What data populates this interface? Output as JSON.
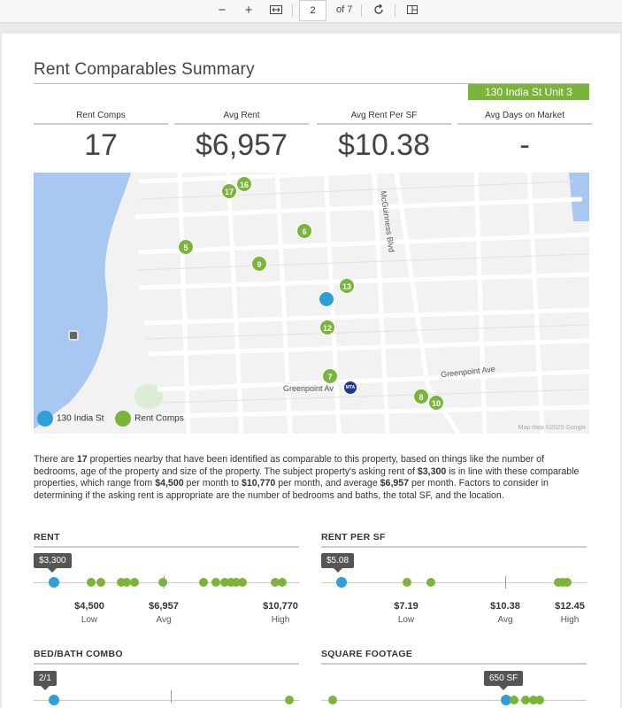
{
  "toolbar": {
    "zoom_out": "−",
    "zoom_in": "+",
    "page_number": "2",
    "page_of": "of 7"
  },
  "report": {
    "title": "Rent Comparables Summary",
    "address": "130 India St Unit 3"
  },
  "stats": [
    {
      "label": "Rent Comps",
      "value": "17"
    },
    {
      "label": "Avg Rent",
      "value": "$6,957"
    },
    {
      "label": "Avg Rent Per SF",
      "value": "$10.38"
    },
    {
      "label": "Avg Days on Market",
      "value": "-"
    }
  ],
  "map": {
    "streets": [
      "McGuinness Blvd",
      "Greenpoint Ave",
      "Greenpoint Av"
    ],
    "transit_label": "MTA",
    "pins": [
      "17",
      "16",
      "6",
      "5",
      "9",
      "13",
      "12",
      "7",
      "8",
      "10"
    ],
    "legend": {
      "subject": "130 India St",
      "comps": "Rent Comps"
    },
    "attribution": "Map data ©2025 Google",
    "colors": {
      "comp": "#7ab53a",
      "subject": "#2e9fd9",
      "water": "#a9c8f1"
    }
  },
  "summary": {
    "p1": "There are ",
    "count": "17",
    "p2": " properties nearby that have been identified as comparable to this property, based on things like the number of bedrooms, age of the property and size of the property. The subject property's asking rent of ",
    "subject_rent": "$3,300",
    "p3": " is in line with these comparable properties, which range from ",
    "low": "$4,500",
    "p4": " per month to ",
    "high": "$10,770",
    "p5": " per month, and average  ",
    "avg": "$6,957",
    "p6": " per month. Factors to consider in determining if the asking rent is appropriate are the number of bedrooms and baths, the total SF, and the location."
  },
  "rent": {
    "title": "RENT",
    "subject": "$3,300",
    "low": "$4,500",
    "low_cap": "Low",
    "avg": "$6,957",
    "avg_cap": "Avg",
    "high": "$10,770",
    "high_cap": "High"
  },
  "rent_sf": {
    "title": "RENT PER SF",
    "subject": "$5.08",
    "low": "$7.19",
    "low_cap": "Low",
    "avg": "$10.38",
    "avg_cap": "Avg",
    "high": "$12.45",
    "high_cap": "High"
  },
  "bed_bath": {
    "title": "BED/BATH COMBO",
    "subject": "2/1"
  },
  "sq_ft": {
    "title": "SQUARE FOOTAGE",
    "subject": "650 SF"
  }
}
